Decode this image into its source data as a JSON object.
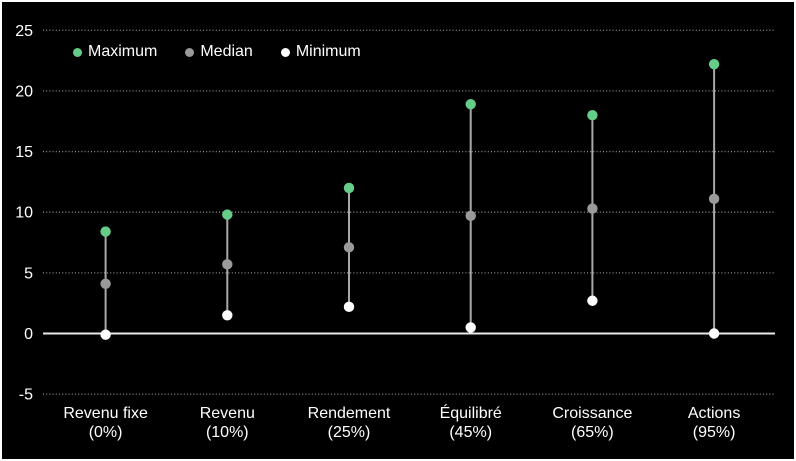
{
  "chart_data": {
    "type": "scatter",
    "variant": "min-median-max range (stem/dot) chart",
    "title": "",
    "xlabel": "",
    "ylabel": "",
    "background_color": "#000000",
    "text_color": "#ffffff",
    "grid": "horizontal dotted gridlines, solid line at 0",
    "legend_position": "top-left inside plot area",
    "yticks": [
      25,
      20,
      15,
      10,
      5,
      0,
      -5
    ],
    "ylim": [
      -6.5,
      25.5
    ],
    "categories": [
      {
        "label": "Revenu fixe",
        "sublabel": "(0%)"
      },
      {
        "label": "Revenu",
        "sublabel": "(10%)"
      },
      {
        "label": "Rendement",
        "sublabel": "(25%)"
      },
      {
        "label": "Équilibré",
        "sublabel": "(45%)"
      },
      {
        "label": "Croissance",
        "sublabel": "(65%)"
      },
      {
        "label": "Actions",
        "sublabel": "(95%)"
      }
    ],
    "series": [
      {
        "name": "Maximum",
        "color": "#66cc8a",
        "values": [
          8.4,
          9.8,
          12.0,
          18.9,
          18.0,
          22.2
        ]
      },
      {
        "name": "Median",
        "color": "#9a9a9a",
        "values": [
          4.1,
          5.7,
          7.1,
          9.7,
          10.3,
          11.1
        ]
      },
      {
        "name": "Minimum",
        "color": "#ffffff",
        "values": [
          -0.1,
          1.5,
          2.2,
          0.5,
          2.7,
          0.0
        ]
      }
    ],
    "style": {
      "stem_color": "#a8a8a8",
      "gridline_color": "#909090",
      "zero_line_color": "#e8e8e8",
      "border_color": "#ffffff"
    }
  }
}
